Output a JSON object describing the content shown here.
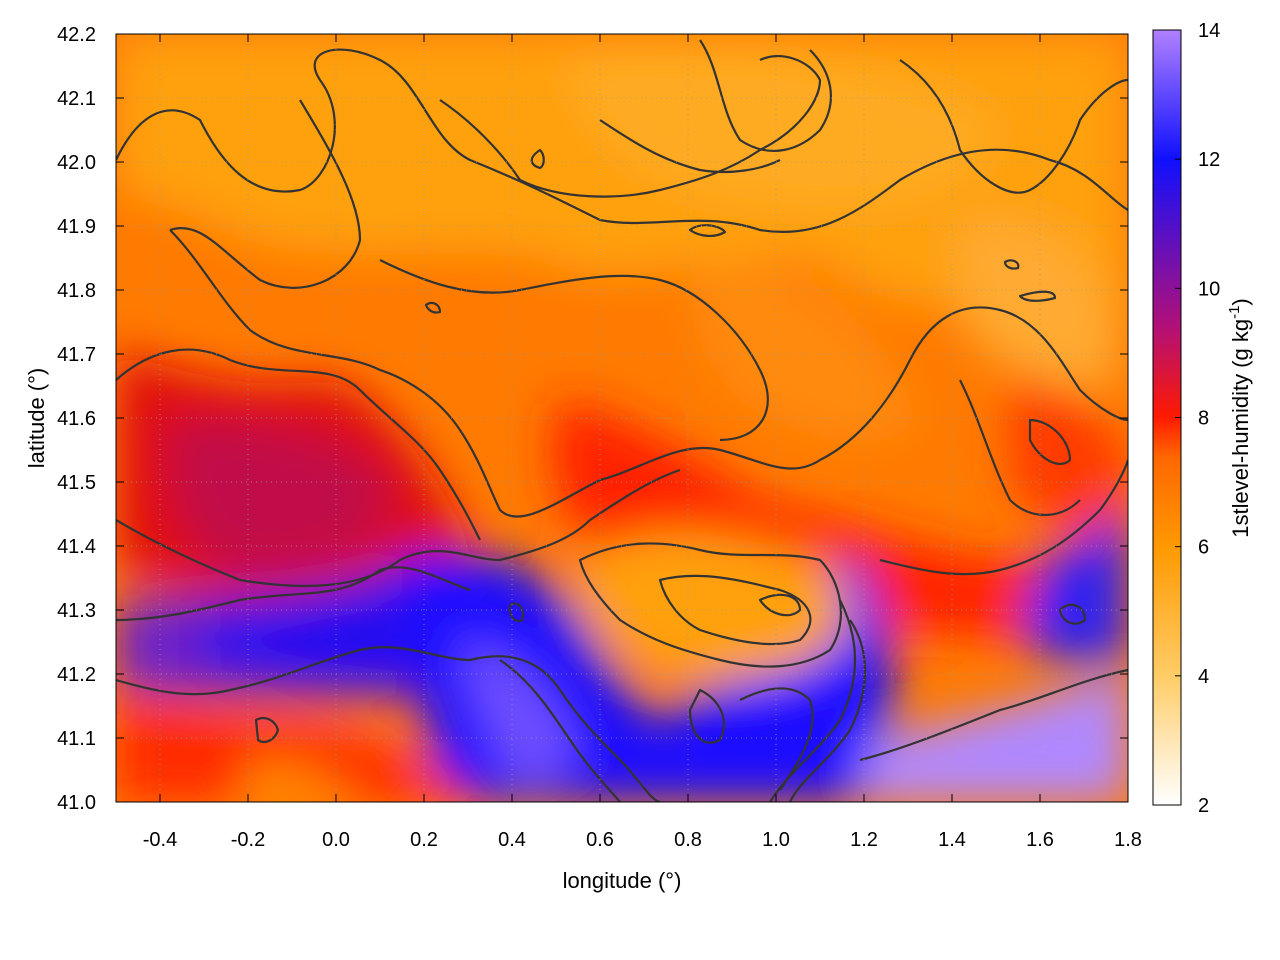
{
  "chart_data": {
    "type": "heatmap",
    "title": "",
    "xlabel": "longitude (°)",
    "ylabel": "latitude (°)",
    "colorbar_label": "1stlevel-humidity (g kg",
    "colorbar_label_exp": "-1",
    "colorbar_label_end": ")",
    "xlim": [
      -0.5,
      1.8
    ],
    "ylim": [
      41.0,
      42.2
    ],
    "x_ticks": [
      -0.4,
      -0.2,
      0.0,
      0.2,
      0.4,
      0.6,
      0.8,
      1.0,
      1.2,
      1.4,
      1.6,
      1.8
    ],
    "x_tick_labels": [
      "-0.4",
      "-0.2",
      "0.0",
      "0.2",
      "0.4",
      "0.6",
      "0.8",
      "1.0",
      "1.2",
      "1.4",
      "1.6",
      "1.8"
    ],
    "y_ticks": [
      41.0,
      41.1,
      41.2,
      41.3,
      41.4,
      41.5,
      41.6,
      41.7,
      41.8,
      41.9,
      42.0,
      42.1,
      42.2
    ],
    "y_tick_labels": [
      "41.0",
      "41.1",
      "41.2",
      "41.3",
      "41.4",
      "41.5",
      "41.6",
      "41.7",
      "41.8",
      "41.9",
      "42.0",
      "42.1",
      "42.2"
    ],
    "colorbar_range": [
      2,
      14
    ],
    "colorbar_ticks": [
      2,
      4,
      6,
      8,
      10,
      12,
      14
    ],
    "colorbar_tick_labels": [
      "2",
      "4",
      "6",
      "8",
      "10",
      "12",
      "14"
    ],
    "colormap": [
      "#ffffff",
      "#ffcc66",
      "#ff9900",
      "#ff6600",
      "#ff0000",
      "#a0109a",
      "#1010ff",
      "#b080ff"
    ],
    "grid": true,
    "contour_color": "#333333",
    "regions": [
      {
        "lon_range": [
          -0.5,
          1.8
        ],
        "lat_range": [
          41.85,
          42.2
        ],
        "humidity": 5.5
      },
      {
        "lon_range": [
          -0.5,
          0.3
        ],
        "lat_range": [
          41.35,
          41.65
        ],
        "humidity": 8.5
      },
      {
        "lon_range": [
          -0.5,
          0.5
        ],
        "lat_range": [
          41.15,
          41.35
        ],
        "humidity": 10.5
      },
      {
        "lon_range": [
          0.3,
          0.65
        ],
        "lat_range": [
          41.0,
          41.35
        ],
        "humidity": 12.0
      },
      {
        "lon_range": [
          0.55,
          1.1
        ],
        "lat_range": [
          41.2,
          41.4
        ],
        "humidity": 5.0
      },
      {
        "lon_range": [
          0.7,
          1.3
        ],
        "lat_range": [
          41.0,
          41.15
        ],
        "humidity": 11.5
      },
      {
        "lon_range": [
          1.2,
          1.8
        ],
        "lat_range": [
          41.0,
          41.2
        ],
        "humidity": 13.5
      },
      {
        "lon_range": [
          1.3,
          1.8
        ],
        "lat_range": [
          41.5,
          41.9
        ],
        "humidity": 5.0
      }
    ]
  }
}
